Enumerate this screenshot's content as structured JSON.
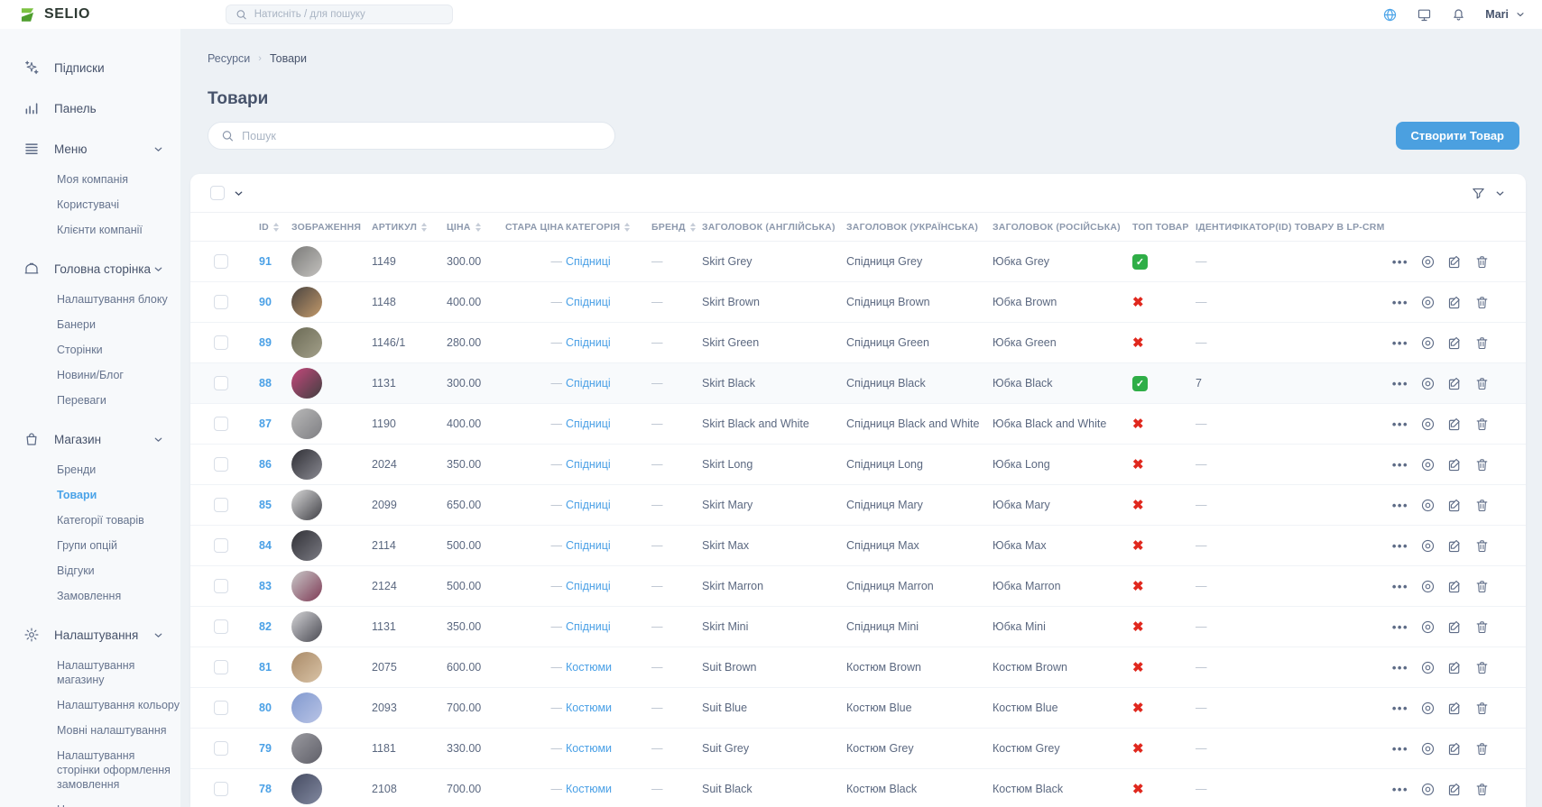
{
  "topbar": {
    "logo_text": "SELIO",
    "search_placeholder": "Натисніть / для пошуку",
    "user_name": "Mari",
    "icon_names": [
      "globe-icon",
      "display-icon",
      "bell-icon"
    ]
  },
  "sidebar": {
    "sections": [
      {
        "label": "Підписки",
        "icon": "sparkles-icon",
        "children": []
      },
      {
        "label": "Панель",
        "icon": "bar-chart-icon",
        "children": []
      },
      {
        "label": "Меню",
        "icon": "menu-icon",
        "children": [
          "Моя компанія",
          "Користувачі",
          "Клієнти компанії"
        ]
      },
      {
        "label": "Головна сторінка",
        "icon": "storage-box-icon",
        "children": [
          "Налаштування блоку",
          "Банери",
          "Сторінки",
          "Новини/Блог",
          "Переваги"
        ]
      },
      {
        "label": "Магазин",
        "icon": "shopping-bag-icon",
        "children": [
          "Бренди",
          "Товари",
          "Категорії товарів",
          "Групи опцій",
          "Відгуки",
          "Замовлення"
        ],
        "active_child": "Товари"
      },
      {
        "label": "Налаштування",
        "icon": "gear-icon",
        "children": [
          "Налаштування магазину",
          "Налаштування кольору",
          "Мовні налаштування",
          "Налаштування сторінки оформлення замовлення",
          "Налаштування скриптів"
        ]
      }
    ]
  },
  "breadcrumb": {
    "root": "Ресурси",
    "current": "Товари"
  },
  "page": {
    "title": "Товари",
    "search_placeholder": "Пошук",
    "create_button": "Створити Товар"
  },
  "table": {
    "columns": [
      {
        "key": "id",
        "label": "ID",
        "sortable": true
      },
      {
        "key": "image",
        "label": "ЗОБРАЖЕННЯ",
        "sortable": false
      },
      {
        "key": "sku",
        "label": "АРТИКУЛ",
        "sortable": true
      },
      {
        "key": "price",
        "label": "ЦІНА",
        "sortable": true
      },
      {
        "key": "old_price",
        "label": "СТАРА ЦІНА",
        "sortable": false
      },
      {
        "key": "category",
        "label": "КАТЕГОРІЯ",
        "sortable": true
      },
      {
        "key": "brand",
        "label": "БРЕНД",
        "sortable": true
      },
      {
        "key": "title_en",
        "label": "ЗАГОЛОВОК (АНГЛІЙСЬКА)",
        "sortable": false
      },
      {
        "key": "title_uk",
        "label": "ЗАГОЛОВОК (УКРАЇНСЬКА)",
        "sortable": false
      },
      {
        "key": "title_ru",
        "label": "ЗАГОЛОВОК (РОСІЙСЬКА)",
        "sortable": false
      },
      {
        "key": "top",
        "label": "ТОП ТОВАР",
        "sortable": false
      },
      {
        "key": "lpcrm",
        "label": "ІДЕНТИФІКАТОР(ID) ТОВАРУ В LP-CRM",
        "sortable": false
      }
    ],
    "row_action_icons": [
      "more-icon",
      "view-icon",
      "edit-icon",
      "delete-icon"
    ],
    "rows": [
      {
        "id": "91",
        "sku": "1149",
        "price": "300.00",
        "old_price": "—",
        "category": "Спідниці",
        "brand": "—",
        "title_en": "Skirt Grey",
        "title_uk": "Спідниця Grey",
        "title_ru": "Юбка Grey",
        "top": true,
        "lpcrm": "—",
        "highlighted": false,
        "image_colors": [
          "#7a7a78",
          "#c4c2bf"
        ]
      },
      {
        "id": "90",
        "sku": "1148",
        "price": "400.00",
        "old_price": "—",
        "category": "Спідниці",
        "brand": "—",
        "title_en": "Skirt Brown",
        "title_uk": "Спідниця Brown",
        "title_ru": "Юбка Brown",
        "top": false,
        "lpcrm": "—",
        "highlighted": false,
        "image_colors": [
          "#4a4440",
          "#c39a6b"
        ]
      },
      {
        "id": "89",
        "sku": "1146/1",
        "price": "280.00",
        "old_price": "—",
        "category": "Спідниці",
        "brand": "—",
        "title_en": "Skirt Green",
        "title_uk": "Спідниця Green",
        "title_ru": "Юбка Green",
        "top": false,
        "lpcrm": "—",
        "highlighted": false,
        "image_colors": [
          "#6b6a55",
          "#a3a08a"
        ]
      },
      {
        "id": "88",
        "sku": "1131",
        "price": "300.00",
        "old_price": "—",
        "category": "Спідниці",
        "brand": "—",
        "title_en": "Skirt Black",
        "title_uk": "Спідниця Black",
        "title_ru": "Юбка Black",
        "top": true,
        "lpcrm": "7",
        "highlighted": true,
        "image_colors": [
          "#c4487c",
          "#413f40"
        ]
      },
      {
        "id": "87",
        "sku": "1190",
        "price": "400.00",
        "old_price": "—",
        "category": "Спідниці",
        "brand": "—",
        "title_en": "Skirt Black and White",
        "title_uk": "Спідниця Black and White",
        "title_ru": "Юбка Black and White",
        "top": false,
        "lpcrm": "—",
        "highlighted": false,
        "image_colors": [
          "#b9b9b9",
          "#7e7e82"
        ]
      },
      {
        "id": "86",
        "sku": "2024",
        "price": "350.00",
        "old_price": "—",
        "category": "Спідниці",
        "brand": "—",
        "title_en": "Skirt Long",
        "title_uk": "Спідниця Long",
        "title_ru": "Юбка Long",
        "top": false,
        "lpcrm": "—",
        "highlighted": false,
        "image_colors": [
          "#2f2f35",
          "#8a8a92"
        ]
      },
      {
        "id": "85",
        "sku": "2099",
        "price": "650.00",
        "old_price": "—",
        "category": "Спідниці",
        "brand": "—",
        "title_en": "Skirt Mary",
        "title_uk": "Спідниця Mary",
        "title_ru": "Юбка Mary",
        "top": false,
        "lpcrm": "—",
        "highlighted": false,
        "image_colors": [
          "#d9d9d9",
          "#3f3f45"
        ]
      },
      {
        "id": "84",
        "sku": "2114",
        "price": "500.00",
        "old_price": "—",
        "category": "Спідниці",
        "brand": "—",
        "title_en": "Skirt Max",
        "title_uk": "Спідниця Max",
        "title_ru": "Юбка Max",
        "top": false,
        "lpcrm": "—",
        "highlighted": false,
        "image_colors": [
          "#303036",
          "#7b7b83"
        ]
      },
      {
        "id": "83",
        "sku": "2124",
        "price": "500.00",
        "old_price": "—",
        "category": "Спідниці",
        "brand": "—",
        "title_en": "Skirt Marron",
        "title_uk": "Спідниця Marron",
        "title_ru": "Юбка Marron",
        "top": false,
        "lpcrm": "—",
        "highlighted": false,
        "image_colors": [
          "#c9c9c9",
          "#7e3a55"
        ]
      },
      {
        "id": "82",
        "sku": "1131",
        "price": "350.00",
        "old_price": "—",
        "category": "Спідниці",
        "brand": "—",
        "title_en": "Skirt Mini",
        "title_uk": "Спідниця Mini",
        "title_ru": "Юбка Mini",
        "top": false,
        "lpcrm": "—",
        "highlighted": false,
        "image_colors": [
          "#d3d3d6",
          "#4a4a52"
        ]
      },
      {
        "id": "81",
        "sku": "2075",
        "price": "600.00",
        "old_price": "—",
        "category": "Костюми",
        "brand": "—",
        "title_en": "Suit Brown",
        "title_uk": "Костюм Brown",
        "title_ru": "Костюм Brown",
        "top": false,
        "lpcrm": "—",
        "highlighted": false,
        "image_colors": [
          "#a98a68",
          "#d9c3a6"
        ]
      },
      {
        "id": "80",
        "sku": "2093",
        "price": "700.00",
        "old_price": "—",
        "category": "Костюми",
        "brand": "—",
        "title_en": "Suit Blue",
        "title_uk": "Костюм Blue",
        "title_ru": "Костюм Blue",
        "top": false,
        "lpcrm": "—",
        "highlighted": false,
        "image_colors": [
          "#8199cf",
          "#b9c4e6"
        ]
      },
      {
        "id": "79",
        "sku": "1181",
        "price": "330.00",
        "old_price": "—",
        "category": "Костюми",
        "brand": "—",
        "title_en": "Suit Grey",
        "title_uk": "Костюм Grey",
        "title_ru": "Костюм Grey",
        "top": false,
        "lpcrm": "—",
        "highlighted": false,
        "image_colors": [
          "#9a9aa0",
          "#5f5f68"
        ]
      },
      {
        "id": "78",
        "sku": "2108",
        "price": "700.00",
        "old_price": "—",
        "category": "Костюми",
        "brand": "—",
        "title_en": "Suit Black",
        "title_uk": "Костюм Black",
        "title_ru": "Костюм Black",
        "top": false,
        "lpcrm": "—",
        "highlighted": false,
        "image_colors": [
          "#454b61",
          "#8289a0"
        ]
      }
    ]
  },
  "colors": {
    "accent_blue": "#4aa3e8",
    "button_blue": "#4ba0e0",
    "top_yes_green": "#2fae47",
    "top_no_red": "#e0281e",
    "logo_green": "#7cc242"
  }
}
